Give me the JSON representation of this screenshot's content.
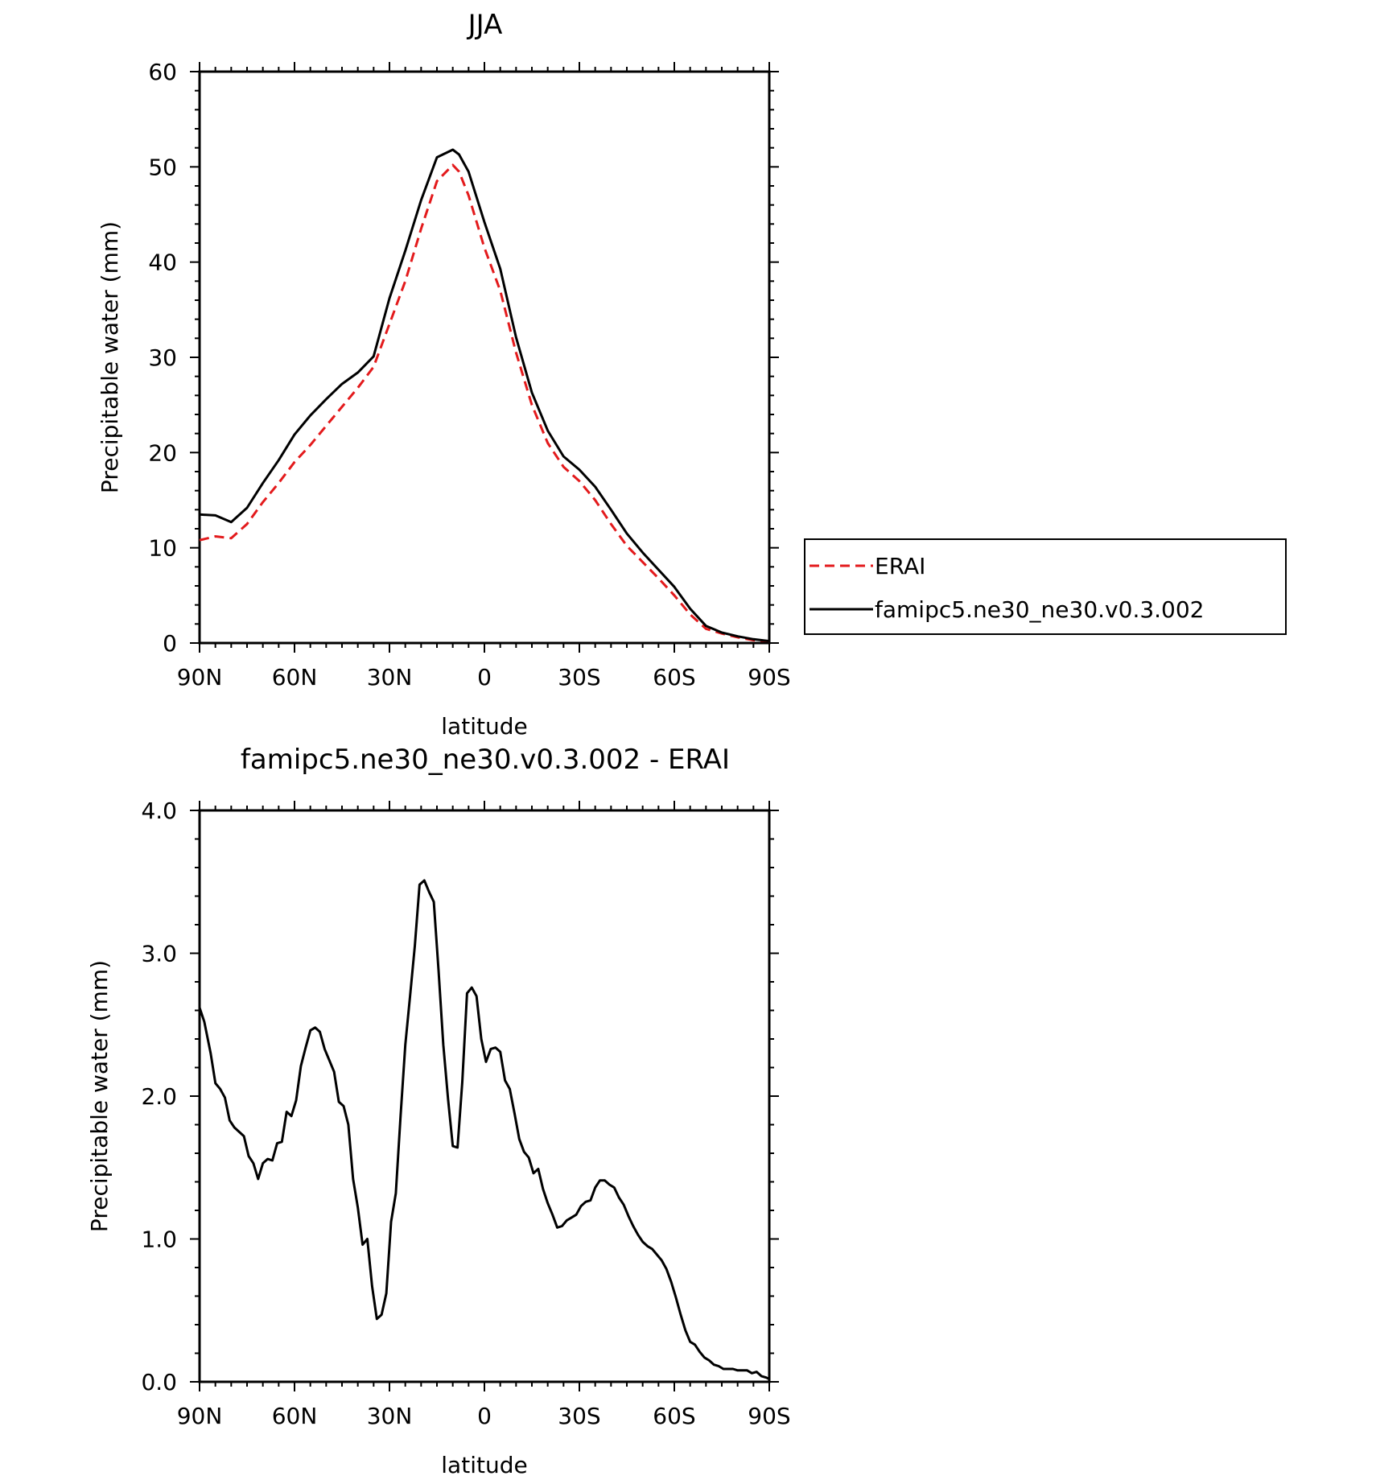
{
  "chart_data": [
    {
      "type": "line",
      "title": "JJA",
      "xlabel": "latitude",
      "ylabel": "Precipitable water (mm)",
      "xlim": [
        90,
        -90
      ],
      "ylim": [
        0,
        60
      ],
      "xticks": [
        90,
        60,
        30,
        0,
        -30,
        -60,
        -90
      ],
      "xtick_labels": [
        "90N",
        "60N",
        "30N",
        "0",
        "30S",
        "60S",
        "90S"
      ],
      "yticks": [
        0,
        10,
        20,
        30,
        40,
        50,
        60
      ],
      "ytick_labels": [
        "0",
        "10",
        "20",
        "30",
        "40",
        "50",
        "60"
      ],
      "legend_position": "right",
      "series": [
        {
          "name": "ERAI",
          "color": "#e31a1c",
          "style": "dashed",
          "x": [
            90,
            85,
            80,
            75,
            70,
            65,
            60,
            55,
            50,
            45,
            40,
            35,
            30,
            25,
            20,
            15,
            10,
            8,
            5,
            0,
            -5,
            -10,
            -15,
            -20,
            -25,
            -30,
            -35,
            -40,
            -45,
            -50,
            -55,
            -60,
            -65,
            -70,
            -75,
            -80,
            -85,
            -90
          ],
          "y": [
            10.8,
            11.2,
            11.0,
            12.5,
            14.8,
            16.8,
            19.0,
            20.8,
            22.8,
            24.8,
            26.8,
            29.0,
            33.5,
            38.0,
            43.5,
            48.5,
            50.2,
            49.5,
            47.0,
            41.5,
            37.0,
            30.5,
            25.0,
            21.0,
            18.5,
            17.0,
            15.0,
            12.5,
            10.2,
            8.5,
            6.8,
            5.0,
            3.0,
            1.5,
            1.0,
            0.6,
            0.3,
            0.2
          ]
        },
        {
          "name": "famipc5.ne30_ne30.v0.3.002",
          "color": "#000000",
          "style": "solid",
          "x": [
            90,
            85,
            80,
            75,
            70,
            65,
            60,
            55,
            50,
            45,
            40,
            35,
            30,
            25,
            20,
            15,
            10,
            8,
            5,
            0,
            -5,
            -10,
            -15,
            -20,
            -25,
            -30,
            -35,
            -40,
            -45,
            -50,
            -55,
            -60,
            -65,
            -70,
            -75,
            -80,
            -85,
            -90
          ],
          "y": [
            13.5,
            13.4,
            12.7,
            14.2,
            16.8,
            19.2,
            21.9,
            23.9,
            25.6,
            27.2,
            28.4,
            30.1,
            36.2,
            41.2,
            46.5,
            51.0,
            51.8,
            51.3,
            49.5,
            44.2,
            39.3,
            32.1,
            26.3,
            22.3,
            19.6,
            18.2,
            16.4,
            14.0,
            11.5,
            9.5,
            7.7,
            5.9,
            3.6,
            1.8,
            1.1,
            0.7,
            0.4,
            0.2
          ]
        }
      ]
    },
    {
      "type": "line",
      "title": "famipc5.ne30_ne30.v0.3.002 - ERAI",
      "xlabel": "latitude",
      "ylabel": "Precipitable water (mm)",
      "xlim": [
        90,
        -90
      ],
      "ylim": [
        0,
        4
      ],
      "xticks": [
        90,
        60,
        30,
        0,
        -30,
        -60,
        -90
      ],
      "xtick_labels": [
        "90N",
        "60N",
        "30N",
        "0",
        "30S",
        "60S",
        "90S"
      ],
      "yticks": [
        0,
        1,
        2,
        3,
        4
      ],
      "ytick_labels": [
        "0.0",
        "1.0",
        "2.0",
        "3.0",
        "4.0"
      ],
      "series": [
        {
          "color": "#000000",
          "style": "solid",
          "x": [
            90,
            88.5,
            86.5,
            85,
            83.5,
            82,
            80.5,
            79,
            77.5,
            76,
            74.5,
            73,
            71.5,
            70,
            68.5,
            67,
            65.5,
            64,
            62.5,
            61,
            59.5,
            58,
            56.5,
            55,
            53.5,
            52,
            50.5,
            49,
            47.5,
            46,
            44.5,
            43,
            41.5,
            40,
            38.5,
            37,
            35.5,
            34,
            32.5,
            31,
            29.5,
            28,
            26.5,
            25,
            23.5,
            22,
            20.5,
            19,
            17.5,
            16,
            14.5,
            13,
            11.5,
            10,
            8.5,
            7,
            5.5,
            4,
            2.5,
            1,
            -0.5,
            -2,
            -3.5,
            -5,
            -6.5,
            -8,
            -9.5,
            -11,
            -12.5,
            -14,
            -15.5,
            -17,
            -18.5,
            -20,
            -21.5,
            -23,
            -24.5,
            -26,
            -27.5,
            -29,
            -30.5,
            -32,
            -33.5,
            -35,
            -36.5,
            -38,
            -39.5,
            -41,
            -42.5,
            -44,
            -45.5,
            -47,
            -48.5,
            -50,
            -51.5,
            -53,
            -54.5,
            -56,
            -57.5,
            -59,
            -60.5,
            -62,
            -63.5,
            -65,
            -66.5,
            -68,
            -69.5,
            -71,
            -72.5,
            -74,
            -75.5,
            -77,
            -78.5,
            -80,
            -81.5,
            -83,
            -84.5,
            -86,
            -87.5,
            -89,
            -90
          ],
          "y": [
            2.62,
            2.52,
            2.3,
            2.09,
            2.05,
            1.99,
            1.83,
            1.78,
            1.75,
            1.72,
            1.58,
            1.53,
            1.42,
            1.53,
            1.56,
            1.55,
            1.67,
            1.68,
            1.89,
            1.86,
            1.97,
            2.21,
            2.34,
            2.46,
            2.48,
            2.45,
            2.33,
            2.25,
            2.17,
            1.96,
            1.93,
            1.8,
            1.42,
            1.22,
            0.96,
            1.0,
            0.67,
            0.44,
            0.47,
            0.62,
            1.12,
            1.32,
            1.86,
            2.36,
            2.7,
            3.05,
            3.48,
            3.51,
            3.43,
            3.36,
            2.88,
            2.36,
            1.98,
            1.65,
            1.64,
            2.1,
            2.72,
            2.76,
            2.7,
            2.4,
            2.24,
            2.33,
            2.34,
            2.31,
            2.11,
            2.05,
            1.88,
            1.7,
            1.61,
            1.57,
            1.46,
            1.49,
            1.35,
            1.25,
            1.17,
            1.08,
            1.09,
            1.13,
            1.15,
            1.17,
            1.23,
            1.26,
            1.27,
            1.36,
            1.41,
            1.41,
            1.38,
            1.36,
            1.29,
            1.24,
            1.16,
            1.09,
            1.03,
            0.98,
            0.95,
            0.93,
            0.89,
            0.85,
            0.79,
            0.7,
            0.59,
            0.47,
            0.36,
            0.28,
            0.26,
            0.21,
            0.17,
            0.15,
            0.12,
            0.11,
            0.09,
            0.09,
            0.09,
            0.08,
            0.08,
            0.08,
            0.06,
            0.07,
            0.04,
            0.03,
            0.02
          ]
        }
      ]
    }
  ]
}
